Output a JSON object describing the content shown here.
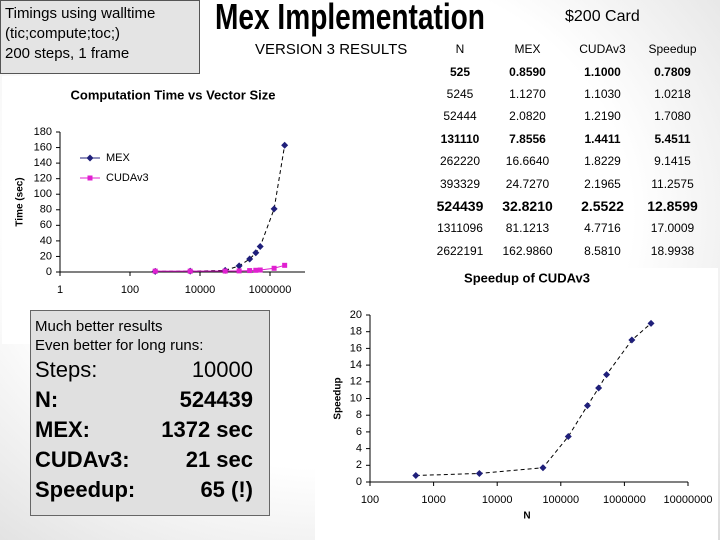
{
  "header": {
    "note_lines": [
      "Timings using walltime",
      "(tic;compute;toc;)",
      "200 steps, 1 frame"
    ],
    "title": "Mex Implementation",
    "card": "$200 Card",
    "subtitle": "VERSION 3 RESULTS"
  },
  "table": {
    "columns": [
      "N",
      "MEX",
      "CUDAv3",
      "Speedup"
    ],
    "rows": [
      [
        "525",
        "0.8590",
        "1.1000",
        "0.7809"
      ],
      [
        "5245",
        "1.1270",
        "1.1030",
        "1.0218"
      ],
      [
        "52444",
        "2.0820",
        "1.2190",
        "1.7080"
      ],
      [
        "131110",
        "7.8556",
        "1.4411",
        "5.4511"
      ],
      [
        "262220",
        "16.6640",
        "1.8229",
        "9.1415"
      ],
      [
        "393329",
        "24.7270",
        "2.1965",
        "11.2575"
      ],
      [
        "524439",
        "32.8210",
        "2.5522",
        "12.8599"
      ],
      [
        "1311096",
        "81.1213",
        "4.7716",
        "17.0009"
      ],
      [
        "2622191",
        "162.9860",
        "8.5810",
        "18.9938"
      ]
    ]
  },
  "notes": {
    "intro": [
      "Much better results",
      "Even better for long runs:"
    ],
    "lines": [
      [
        "Steps:",
        "10000"
      ],
      [
        "N:",
        "524439"
      ],
      [
        "MEX:",
        "1372 sec"
      ],
      [
        "CUDAv3:",
        "21 sec"
      ],
      [
        "Speedup:",
        "65 (!)"
      ]
    ]
  },
  "chart_data": [
    {
      "type": "line",
      "title": "Computation Time vs Vector Size",
      "ylabel": "Time (sec)",
      "xscale": "log",
      "legend": "upper left",
      "x": [
        525,
        5245,
        52444,
        131110,
        262220,
        393329,
        524439,
        1311096,
        2622191
      ],
      "series": [
        {
          "name": "MEX",
          "color": "#1f1f7a",
          "marker": "diamond",
          "values": [
            0.859,
            1.127,
            2.082,
            7.8556,
            16.664,
            24.727,
            32.821,
            81.1213,
            162.986
          ]
        },
        {
          "name": "CUDAv3",
          "color": "#e020d0",
          "marker": "square",
          "values": [
            1.1,
            1.103,
            1.219,
            1.4411,
            1.8229,
            2.1965,
            2.5522,
            4.7716,
            8.581
          ]
        }
      ],
      "xlim": [
        1,
        10000000
      ],
      "xticks": [
        1,
        100,
        10000,
        1000000
      ],
      "ylim": [
        0,
        180
      ],
      "yticks": [
        0,
        20,
        40,
        60,
        80,
        100,
        120,
        140,
        160,
        180
      ]
    },
    {
      "type": "line",
      "title": "Speedup of CUDAv3",
      "ylabel": "Speedup",
      "xlabel": "N",
      "xscale": "log",
      "x": [
        525,
        5245,
        52444,
        131110,
        262220,
        393329,
        524439,
        1311096,
        2622191
      ],
      "series": [
        {
          "color": "#1f1f7a",
          "marker": "diamond",
          "values": [
            0.7809,
            1.0218,
            1.708,
            5.4511,
            9.1415,
            11.2575,
            12.8599,
            17.0009,
            18.9938
          ]
        }
      ],
      "xlim": [
        100,
        10000000
      ],
      "xticks": [
        100,
        1000,
        10000,
        100000,
        1000000,
        10000000
      ],
      "ylim": [
        0,
        20
      ],
      "yticks": [
        0,
        2,
        4,
        6,
        8,
        10,
        12,
        14,
        16,
        18,
        20
      ]
    }
  ]
}
